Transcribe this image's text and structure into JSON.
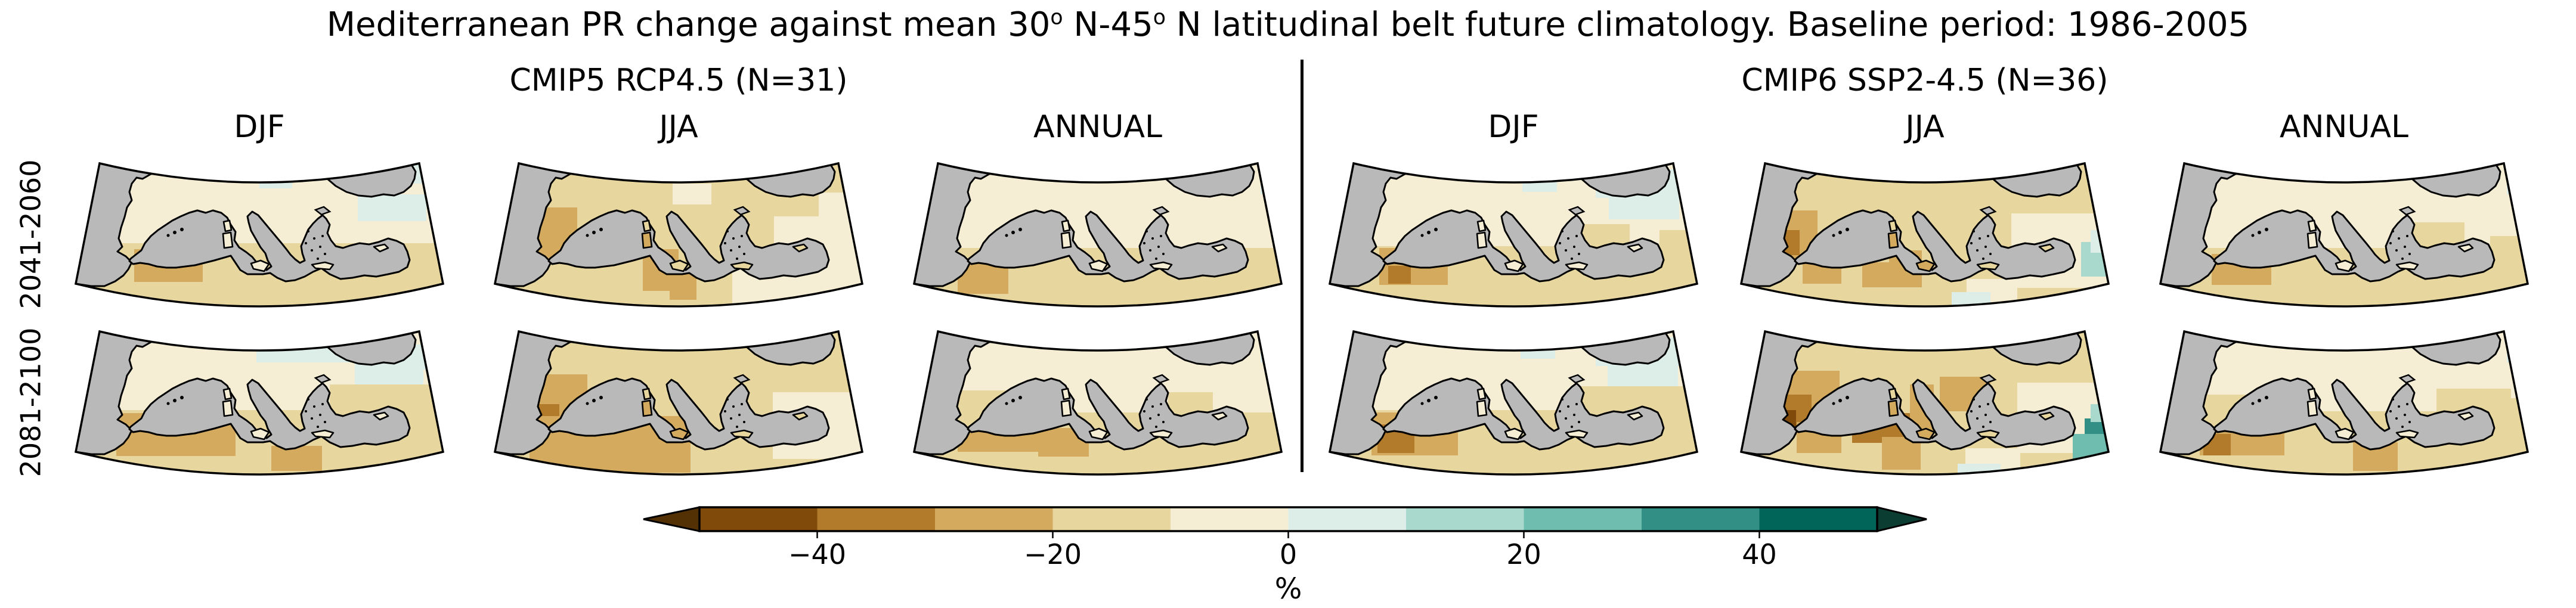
{
  "figure": {
    "title_part1": "Mediterranean PR change against mean 30",
    "title_sup1": "o",
    "title_part2": " N-45",
    "title_sup2": "o",
    "title_part3": " N latitudinal belt future climatology. Baseline period: 1986-2005"
  },
  "groups": [
    {
      "label": "CMIP5 RCP4.5 (N=31)"
    },
    {
      "label": "CMIP6 SSP2-4.5 (N=36)"
    }
  ],
  "seasons": [
    "DJF",
    "JJA",
    "ANNUAL"
  ],
  "periods": [
    "2041-2060",
    "2081-2100"
  ],
  "colorbar": {
    "unit": "%",
    "tick_labels": [
      "−40",
      "−20",
      "0",
      "20",
      "40"
    ],
    "tick_values": [
      -40,
      -20,
      0,
      20,
      40
    ],
    "range_percent": [
      -50,
      50
    ],
    "bin_edges": [
      -50,
      -40,
      -30,
      -20,
      -10,
      0,
      10,
      20,
      30,
      40,
      50
    ],
    "segment_colors": [
      "#7f4a0a",
      "#b27a2b",
      "#d3aa5e",
      "#e7d79f",
      "#f5eed5",
      "#ddeee9",
      "#a9d8cc",
      "#6fbdae",
      "#318f85",
      "#01655a"
    ],
    "left_arrow_color": "#543005",
    "right_arrow_color": "#0c3d33",
    "outline_color": "#000000"
  },
  "map_style": {
    "sea_color": "#b9b9b9",
    "coast_color": "#000000",
    "frame_color": "#000000",
    "background": "#ffffff"
  },
  "chart_data": {
    "type": "heatmap",
    "description": "Grid of 12 Mediterranean map panels (2 periods x 2 model ensembles x 3 seasons) showing precipitation change (%) relative to the 30N-45N latitudinal belt future climatology. Land cells are colored by % change bins of the BrBG palette; sea is gray-masked. Patches are approximate grid-cell regions in map-local coordinates (620x250) with bin index into colorbar.segment_colors.",
    "bin_labels": [
      "-50..-40",
      "-40..-30",
      "-30..-20",
      "-20..-10",
      "-10..0",
      "0..10",
      "10..20",
      "20..30",
      "30..40",
      "40..50"
    ],
    "panels": [
      {
        "group": "CMIP5 RCP4.5 (N=31)",
        "season": "DJF",
        "period": "2041-2060",
        "base_bin": 4,
        "patches": [
          [
            0,
            140,
            620,
            110,
            3
          ],
          [
            100,
            150,
            115,
            55,
            2
          ],
          [
            310,
            24,
            55,
            24,
            5
          ],
          [
            475,
            58,
            115,
            45,
            5
          ],
          [
            563,
            8,
            42,
            32,
            5
          ]
        ],
        "island_bins": {}
      },
      {
        "group": "CMIP5 RCP4.5 (N=31)",
        "season": "JJA",
        "period": "2041-2060",
        "base_bin": 3,
        "patches": [
          [
            470,
            95,
            150,
            125,
            4
          ],
          [
            400,
            175,
            220,
            75,
            4
          ],
          [
            55,
            80,
            85,
            85,
            2
          ],
          [
            250,
            150,
            60,
            70,
            2
          ],
          [
            295,
            190,
            45,
            45,
            2
          ],
          [
            300,
            40,
            65,
            35,
            4
          ],
          [
            545,
            55,
            75,
            50,
            4
          ]
        ],
        "island_bins": {
          "sardinia": 2
        }
      },
      {
        "group": "CMIP5 RCP4.5 (N=31)",
        "season": "ANNUAL",
        "period": "2041-2060",
        "base_bin": 4,
        "patches": [
          [
            0,
            148,
            620,
            102,
            3
          ],
          [
            75,
            170,
            85,
            55,
            2
          ],
          [
            583,
            26,
            37,
            32,
            5
          ]
        ],
        "island_bins": {}
      },
      {
        "group": "CMIP6 SSP2-4.5 (N=36)",
        "season": "DJF",
        "period": "2041-2060",
        "base_bin": 4,
        "patches": [
          [
            0,
            145,
            620,
            105,
            3
          ],
          [
            85,
            148,
            115,
            62,
            2
          ],
          [
            100,
            178,
            38,
            30,
            1
          ],
          [
            448,
            16,
            172,
            48,
            5
          ],
          [
            470,
            60,
            118,
            40,
            5
          ],
          [
            325,
            28,
            58,
            26,
            5
          ],
          [
            420,
            108,
            85,
            50,
            3
          ],
          [
            555,
            118,
            65,
            85,
            3
          ]
        ],
        "island_bins": {}
      },
      {
        "group": "CMIP6 SSP2-4.5 (N=36)",
        "season": "JJA",
        "period": "2041-2060",
        "base_bin": 3,
        "patches": [
          [
            55,
            85,
            75,
            90,
            2
          ],
          [
            68,
            118,
            32,
            42,
            1
          ],
          [
            105,
            158,
            65,
            50,
            2
          ],
          [
            250,
            152,
            55,
            62,
            2
          ],
          [
            205,
            172,
            48,
            42,
            2
          ],
          [
            455,
            90,
            165,
            125,
            4
          ],
          [
            380,
            200,
            85,
            45,
            4
          ],
          [
            572,
            138,
            48,
            58,
            6
          ],
          [
            588,
            118,
            32,
            38,
            5
          ],
          [
            355,
            222,
            65,
            28,
            5
          ]
        ],
        "island_bins": {
          "sardinia": 2,
          "sicily": 2
        }
      },
      {
        "group": "CMIP6 SSP2-4.5 (N=36)",
        "season": "ANNUAL",
        "period": "2041-2060",
        "base_bin": 4,
        "patches": [
          [
            0,
            148,
            620,
            102,
            3
          ],
          [
            88,
            158,
            100,
            52,
            2
          ],
          [
            420,
            105,
            92,
            52,
            3
          ],
          [
            555,
            128,
            65,
            72,
            3
          ],
          [
            583,
            24,
            37,
            34,
            5
          ]
        ],
        "island_bins": {}
      },
      {
        "group": "CMIP5 RCP4.5 (N=31)",
        "season": "DJF",
        "period": "2081-2100",
        "base_bin": 4,
        "patches": [
          [
            0,
            138,
            620,
            112,
            3
          ],
          [
            70,
            143,
            200,
            72,
            2
          ],
          [
            305,
            24,
            195,
            34,
            5
          ],
          [
            470,
            58,
            115,
            40,
            5
          ],
          [
            528,
            28,
            92,
            42,
            5
          ],
          [
            428,
            95,
            192,
            68,
            3
          ],
          [
            330,
            198,
            85,
            42,
            2
          ]
        ],
        "island_bins": {}
      },
      {
        "group": "CMIP5 RCP4.5 (N=31)",
        "season": "JJA",
        "period": "2081-2100",
        "base_bin": 3,
        "patches": [
          [
            52,
            78,
            105,
            102,
            2
          ],
          [
            72,
            128,
            38,
            38,
            1
          ],
          [
            60,
            148,
            270,
            95,
            2
          ],
          [
            468,
            108,
            152,
            112,
            4
          ],
          [
            586,
            28,
            34,
            32,
            5
          ]
        ],
        "island_bins": {
          "sardinia": 2,
          "sicily": 2
        }
      },
      {
        "group": "CMIP5 RCP4.5 (N=31)",
        "season": "ANNUAL",
        "period": "2081-2100",
        "base_bin": 4,
        "patches": [
          [
            0,
            142,
            620,
            108,
            3
          ],
          [
            75,
            146,
            135,
            62,
            2
          ],
          [
            210,
            168,
            85,
            48,
            2
          ],
          [
            65,
            105,
            90,
            62,
            3
          ],
          [
            428,
            108,
            75,
            42,
            3
          ],
          [
            583,
            26,
            37,
            32,
            5
          ]
        ],
        "island_bins": {}
      },
      {
        "group": "CMIP6 SSP2-4.5 (N=36)",
        "season": "DJF",
        "period": "2081-2100",
        "base_bin": 4,
        "patches": [
          [
            0,
            138,
            620,
            112,
            3
          ],
          [
            72,
            142,
            145,
            72,
            2
          ],
          [
            82,
            162,
            62,
            48,
            1
          ],
          [
            448,
            16,
            172,
            48,
            5
          ],
          [
            468,
            58,
            118,
            42,
            5
          ],
          [
            322,
            26,
            58,
            26,
            5
          ],
          [
            418,
            98,
            202,
            68,
            3
          ],
          [
            552,
            112,
            68,
            88,
            3
          ]
        ],
        "island_bins": {}
      },
      {
        "group": "CMIP6 SSP2-4.5 (N=36)",
        "season": "JJA",
        "period": "2081-2100",
        "base_bin": 3,
        "patches": [
          [
            52,
            72,
            115,
            108,
            2
          ],
          [
            62,
            112,
            58,
            62,
            1
          ],
          [
            68,
            138,
            26,
            28,
            0
          ],
          [
            188,
            143,
            122,
            50,
            1
          ],
          [
            95,
            158,
            75,
            52,
            2
          ],
          [
            238,
            183,
            65,
            55,
            2
          ],
          [
            335,
            82,
            85,
            58,
            2
          ],
          [
            285,
            95,
            40,
            85,
            2
          ],
          [
            465,
            92,
            155,
            118,
            4
          ],
          [
            378,
            202,
            92,
            42,
            4
          ],
          [
            578,
            152,
            42,
            58,
            8
          ],
          [
            558,
            178,
            62,
            48,
            7
          ],
          [
            588,
            128,
            32,
            30,
            6
          ],
          [
            365,
            228,
            72,
            22,
            5
          ]
        ],
        "island_bins": {
          "sardinia": 2,
          "sicily": 2
        }
      },
      {
        "group": "CMIP6 SSP2-4.5 (N=36)",
        "season": "ANNUAL",
        "period": "2081-2100",
        "base_bin": 4,
        "patches": [
          [
            0,
            140,
            620,
            110,
            3
          ],
          [
            68,
            148,
            142,
            66,
            2
          ],
          [
            74,
            178,
            46,
            36,
            1
          ],
          [
            325,
            192,
            75,
            48,
            2
          ],
          [
            72,
            112,
            82,
            58,
            3
          ],
          [
            465,
            102,
            125,
            58,
            3
          ],
          [
            552,
            118,
            68,
            82,
            3
          ],
          [
            583,
            26,
            36,
            32,
            5
          ]
        ],
        "island_bins": {}
      }
    ]
  }
}
